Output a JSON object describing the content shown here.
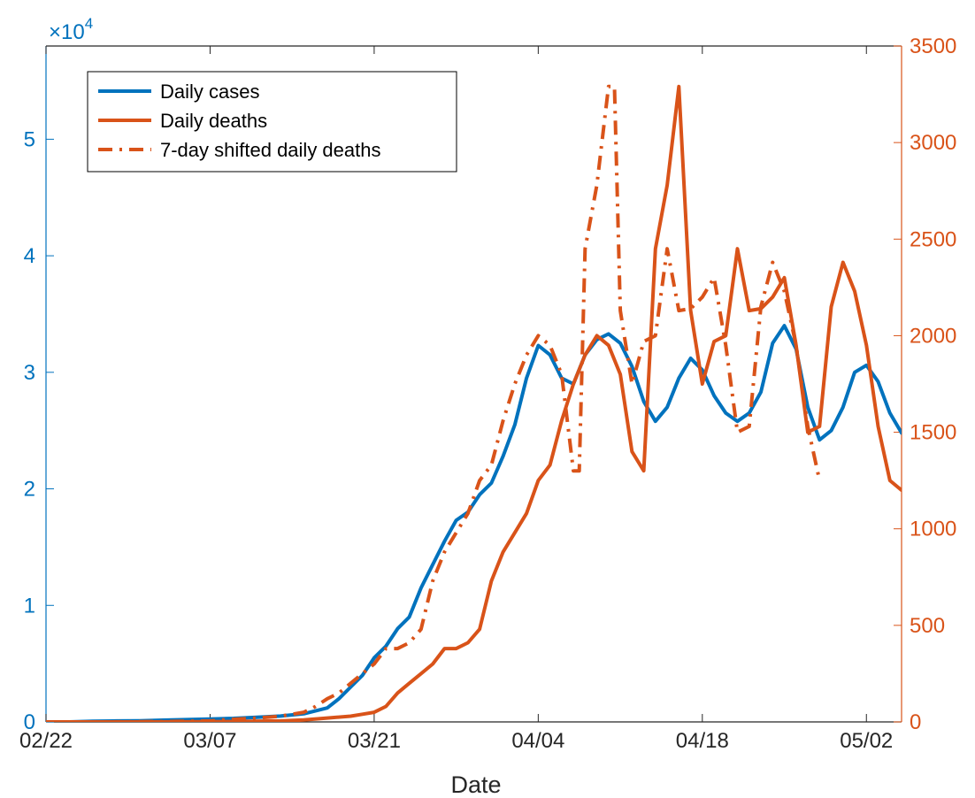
{
  "chart_data": {
    "type": "line",
    "xlabel": "Date",
    "x_ticks": [
      {
        "day": 0,
        "label": "02/22"
      },
      {
        "day": 14,
        "label": "03/07"
      },
      {
        "day": 28,
        "label": "03/21"
      },
      {
        "day": 42,
        "label": "04/04"
      },
      {
        "day": 56,
        "label": "04/18"
      },
      {
        "day": 70,
        "label": "05/02"
      }
    ],
    "xlim": [
      0,
      73
    ],
    "left_axis": {
      "color": "#0072BD",
      "ylim": [
        0,
        58000
      ],
      "ticks": [
        0,
        10000,
        20000,
        30000,
        40000,
        50000
      ],
      "tick_labels": [
        "0",
        "1",
        "2",
        "3",
        "4",
        "5"
      ],
      "exponent_prefix": "×10",
      "exponent": "4"
    },
    "right_axis": {
      "color": "#D95319",
      "ylim": [
        0,
        3500
      ],
      "ticks": [
        0,
        500,
        1000,
        1500,
        2000,
        2500,
        3000,
        3500
      ],
      "tick_labels": [
        "0",
        "500",
        "1000",
        "1500",
        "2000",
        "2500",
        "3000",
        "3500"
      ]
    },
    "legend": {
      "placement": "top-left"
    },
    "series": [
      {
        "name": "Daily cases",
        "axis": "left",
        "color": "#0072BD",
        "style": "solid",
        "x": [
          0,
          2,
          4,
          6,
          8,
          10,
          12,
          14,
          16,
          18,
          20,
          22,
          24,
          25,
          26,
          27,
          28,
          29,
          30,
          31,
          32,
          33,
          34,
          35,
          36,
          37,
          38,
          39,
          40,
          41,
          42,
          43,
          44,
          45,
          46,
          47,
          48,
          49,
          50,
          51,
          52,
          53,
          54,
          55,
          56,
          57,
          58,
          59,
          60,
          61,
          62,
          63,
          64,
          65,
          66,
          67,
          68,
          69,
          70,
          71,
          72,
          73
        ],
        "y": [
          0,
          0,
          50,
          80,
          100,
          150,
          200,
          250,
          300,
          400,
          500,
          700,
          1200,
          2000,
          3000,
          4000,
          5500,
          6500,
          8000,
          9000,
          11500,
          13500,
          15500,
          17300,
          18000,
          19500,
          20500,
          22800,
          25500,
          29500,
          32300,
          31500,
          29500,
          29000,
          31500,
          32800,
          33300,
          32500,
          30500,
          27500,
          25800,
          27000,
          29500,
          31200,
          30200,
          28000,
          26500,
          25800,
          26500,
          28300,
          32500,
          34000,
          32000,
          27000,
          24200,
          25000,
          27000,
          30000,
          30600,
          29200,
          26500,
          24800
        ]
      },
      {
        "name": "Daily deaths",
        "axis": "right",
        "color": "#D95319",
        "style": "solid",
        "x": [
          0,
          5,
          10,
          15,
          20,
          22,
          24,
          26,
          27,
          28,
          29,
          30,
          31,
          32,
          33,
          34,
          35,
          36,
          37,
          38,
          39,
          40,
          41,
          42,
          43,
          44,
          45,
          46,
          47,
          48,
          49,
          50,
          51,
          52,
          53,
          54,
          55,
          56,
          57,
          58,
          59,
          60,
          61,
          62,
          63,
          64,
          65,
          66,
          67,
          68,
          69,
          70,
          71,
          72,
          73
        ],
        "y": [
          0,
          0,
          0,
          2,
          5,
          10,
          20,
          30,
          40,
          50,
          80,
          150,
          200,
          250,
          300,
          380,
          380,
          410,
          480,
          730,
          880,
          980,
          1080,
          1250,
          1330,
          1560,
          1750,
          1900,
          2000,
          1950,
          1800,
          1400,
          1300,
          2450,
          2780,
          3290,
          2130,
          1750,
          1970,
          2000,
          2450,
          2130,
          2140,
          2200,
          2300,
          1950,
          1500,
          1530,
          2150,
          2380,
          2230,
          1950,
          1530,
          1250,
          1200
        ]
      },
      {
        "name": "7-day shifted daily deaths",
        "axis": "right",
        "color": "#D95319",
        "style": "dashdot",
        "x": [
          0,
          5,
          10,
          14,
          15,
          18,
          20,
          22,
          23,
          24,
          25,
          26,
          27,
          28,
          29,
          30,
          31,
          32,
          33,
          34,
          35,
          36,
          37,
          38,
          39,
          40,
          41,
          42,
          43,
          44,
          45,
          45.5,
          46,
          47,
          48,
          48.5,
          49,
          50,
          51,
          52,
          53,
          54,
          55,
          56,
          57,
          58,
          59,
          60,
          61,
          62,
          63,
          64,
          65,
          66
        ],
        "y": [
          0,
          0,
          2,
          5,
          10,
          20,
          30,
          50,
          80,
          120,
          150,
          200,
          250,
          300,
          380,
          380,
          410,
          480,
          730,
          880,
          980,
          1080,
          1250,
          1330,
          1560,
          1750,
          1900,
          2000,
          1950,
          1800,
          1300,
          1300,
          2450,
          2780,
          3290,
          3290,
          2130,
          1750,
          1970,
          2000,
          2450,
          2130,
          2140,
          2200,
          2300,
          1950,
          1500,
          1530,
          2150,
          2380,
          2230,
          1950,
          1530,
          1250
        ]
      }
    ]
  }
}
